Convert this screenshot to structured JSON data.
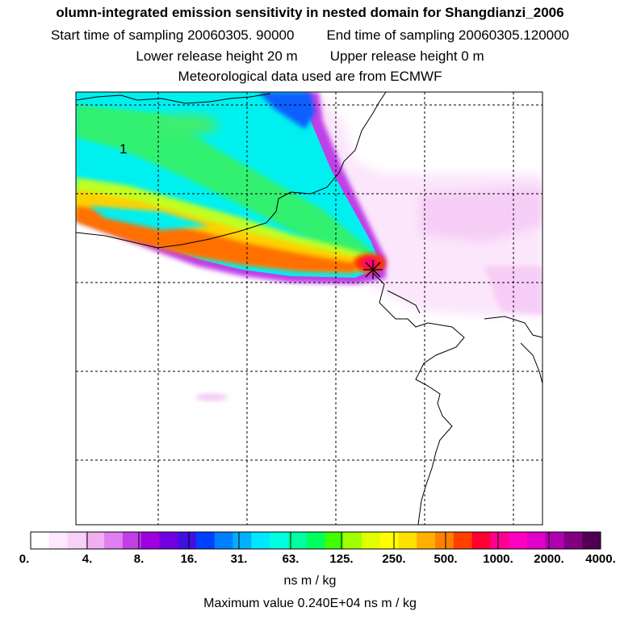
{
  "header": {
    "title": "olumn-integrated emission sensitivity in nested domain for Shangdianzi_2006",
    "start_time": "Start time of sampling 20060305. 90000",
    "end_time": "End time of sampling 20060305.120000",
    "lower_height": "Lower release height   20 m",
    "upper_height": "Upper release height    0 m",
    "met_source": "Meteorological data used are from ECMWF"
  },
  "map": {
    "grid_label": "1",
    "station_marker": "asterisk-icon"
  },
  "legend": {
    "ticks": [
      "0.",
      "4.",
      "8.",
      "16.",
      "31.",
      "63.",
      "125.",
      "250.",
      "500.",
      "1000.",
      "2000.",
      "4000."
    ],
    "unit": "ns m / kg",
    "max_value": "Maximum value  0.240E+04 ns m / kg",
    "colors": [
      "#ffffff",
      "#fde8fd",
      "#f8d0f8",
      "#f0b0f0",
      "#e080f0",
      "#c040e8",
      "#a000e0",
      "#7000e0",
      "#4010e0",
      "#0040ff",
      "#0080ff",
      "#00b0ff",
      "#00e8ff",
      "#00ffe0",
      "#00ffa0",
      "#00ff60",
      "#40ff00",
      "#a0ff00",
      "#e0ff00",
      "#ffff00",
      "#ffe000",
      "#ffb000",
      "#ff8000",
      "#ff4000",
      "#ff0030",
      "#ff0090",
      "#ff00c0",
      "#e000c8",
      "#b000b0",
      "#800080",
      "#500050"
    ]
  }
}
